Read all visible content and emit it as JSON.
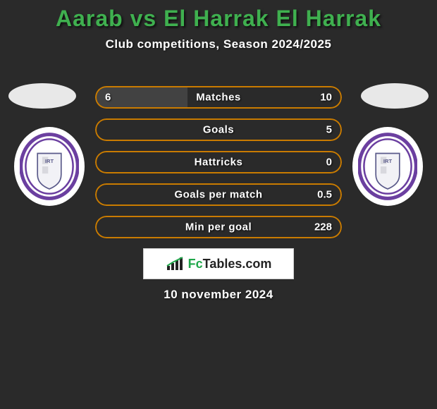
{
  "title": {
    "text": "Aarab vs El Harrak El Harrak",
    "color": "#3fb04f",
    "fontsize": 32
  },
  "subtitle": {
    "text": "Club competitions, Season 2024/2025",
    "fontsize": 17
  },
  "background_color": "#2a2a2a",
  "border_color": "#c97b00",
  "left_fill_color": "#424242",
  "right_fill_color": "#2a2a2a",
  "text_color": "#ffffff",
  "bars": [
    {
      "label": "Matches",
      "left_value": "6",
      "right_value": "10",
      "left_pct": 37.5,
      "right_pct": 62.5
    },
    {
      "label": "Goals",
      "left_value": "",
      "right_value": "5",
      "left_pct": 0,
      "right_pct": 100
    },
    {
      "label": "Hattricks",
      "left_value": "",
      "right_value": "0",
      "left_pct": 0,
      "right_pct": 0
    },
    {
      "label": "Goals per match",
      "left_value": "",
      "right_value": "0.5",
      "left_pct": 0,
      "right_pct": 100
    },
    {
      "label": "Min per goal",
      "left_value": "",
      "right_value": "228",
      "left_pct": 0,
      "right_pct": 100
    }
  ],
  "brand": {
    "prefix": "Fc",
    "suffix": "Tables.com"
  },
  "date": "10 november 2024",
  "badge_colors": {
    "ring": "#6b3fa0",
    "inner": "#ffffff",
    "shield_stroke": "#5a5a8a"
  }
}
